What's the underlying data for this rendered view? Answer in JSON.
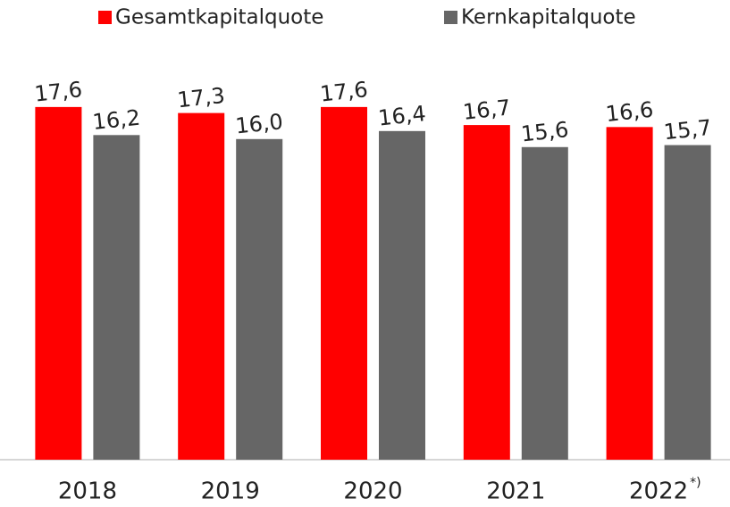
{
  "chart_data": {
    "type": "bar",
    "categories": [
      "2018",
      "2019",
      "2020",
      "2021",
      "2022"
    ],
    "category_note": "*)",
    "series": [
      {
        "name": "Gesamtkapitalquote",
        "color": "#ff0000",
        "values": [
          17.6,
          17.3,
          17.6,
          16.7,
          16.6
        ],
        "value_labels": [
          "17,6",
          "17,3",
          "17,6",
          "16,7",
          "16,6"
        ]
      },
      {
        "name": "Kernkapitalquote",
        "color": "#666666",
        "values": [
          16.2,
          16.0,
          16.4,
          15.6,
          15.7
        ],
        "value_labels": [
          "16,2",
          "16,0",
          "16,4",
          "15,6",
          "15,7"
        ]
      }
    ],
    "ylim": [
      0,
      20
    ],
    "legend": "top"
  }
}
